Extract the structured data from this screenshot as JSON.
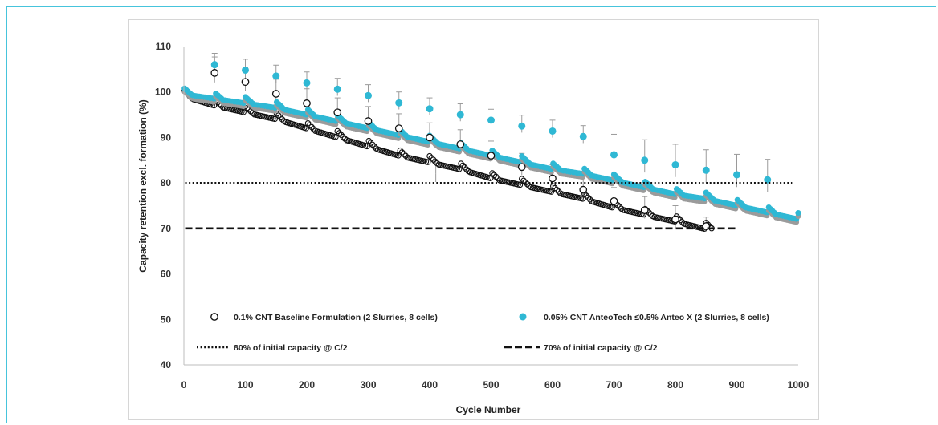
{
  "chart_data": {
    "type": "scatter",
    "xlabel": "Cycle Number",
    "ylabel": "Capacity retention excl. formation (%)",
    "xlim": [
      0,
      1000
    ],
    "ylim": [
      40,
      110
    ],
    "xticks": [
      "0",
      "100",
      "200",
      "300",
      "400",
      "500",
      "600",
      "700",
      "800",
      "900",
      "1000"
    ],
    "yticks": [
      "40",
      "50",
      "60",
      "70",
      "80",
      "90",
      "100",
      "110"
    ],
    "grid": false,
    "legend_placement": "bottom",
    "series": [
      {
        "name": "0.1% CNT Baseline Formulation (2 Slurries, 8 cells)",
        "marker": "open-circle",
        "color": "#111111",
        "end_cycle": 860,
        "trend": [
          [
            0,
            99
          ],
          [
            50,
            97
          ],
          [
            100,
            95.5
          ],
          [
            150,
            94
          ],
          [
            200,
            92
          ],
          [
            250,
            90
          ],
          [
            300,
            88
          ],
          [
            350,
            86
          ],
          [
            400,
            84.5
          ],
          [
            450,
            83
          ],
          [
            500,
            81
          ],
          [
            550,
            79.5
          ],
          [
            600,
            78
          ],
          [
            650,
            76.5
          ],
          [
            700,
            74.5
          ],
          [
            750,
            73
          ],
          [
            800,
            71.5
          ],
          [
            860,
            69.5
          ]
        ],
        "checkup_points": [
          [
            50,
            104.2
          ],
          [
            100,
            102.2
          ],
          [
            150,
            99.6
          ],
          [
            200,
            97.5
          ],
          [
            250,
            95.5
          ],
          [
            300,
            93.6
          ],
          [
            350,
            92
          ],
          [
            400,
            90
          ],
          [
            450,
            88.5
          ],
          [
            500,
            86
          ],
          [
            550,
            83.5
          ],
          [
            600,
            81
          ],
          [
            650,
            78.5
          ],
          [
            700,
            76
          ],
          [
            750,
            74
          ],
          [
            800,
            72
          ],
          [
            850,
            70.5
          ]
        ],
        "error_bars": [
          [
            50,
            104.2,
            3.5
          ],
          [
            100,
            102.2,
            3.2
          ],
          [
            150,
            99.6,
            3.2
          ],
          [
            200,
            97.5,
            3.2
          ],
          [
            250,
            95.5,
            3.2
          ],
          [
            300,
            93.6,
            3.2
          ],
          [
            350,
            92,
            3.2
          ],
          [
            400,
            90,
            3.2
          ],
          [
            410,
            82,
            3
          ],
          [
            450,
            88.5,
            3.2
          ],
          [
            500,
            86,
            3.2
          ],
          [
            550,
            83.5,
            3
          ],
          [
            600,
            81,
            3
          ],
          [
            650,
            78.5,
            3
          ],
          [
            700,
            76,
            3
          ],
          [
            750,
            74,
            3
          ],
          [
            800,
            72,
            3
          ],
          [
            850,
            70.5,
            2
          ]
        ]
      },
      {
        "name": "0.05% CNT AnteoTech ≤0.5% Anteo X (2 Slurries, 8 cells)",
        "marker": "filled-circle",
        "color": "#2fb8d4",
        "end_cycle": 1000,
        "trend": [
          [
            0,
            99.5
          ],
          [
            50,
            98.5
          ],
          [
            100,
            97.5
          ],
          [
            150,
            96.5
          ],
          [
            200,
            95
          ],
          [
            250,
            93.5
          ],
          [
            300,
            92
          ],
          [
            350,
            90.5
          ],
          [
            400,
            89
          ],
          [
            450,
            87.5
          ],
          [
            500,
            86
          ],
          [
            550,
            84.5
          ],
          [
            600,
            83
          ],
          [
            650,
            82
          ],
          [
            700,
            80.5
          ],
          [
            750,
            79
          ],
          [
            800,
            77.5
          ],
          [
            850,
            76.5
          ],
          [
            900,
            75
          ],
          [
            950,
            73.5
          ],
          [
            1000,
            72
          ]
        ],
        "checkup_points": [
          [
            50,
            106
          ],
          [
            100,
            104.8
          ],
          [
            150,
            103.5
          ],
          [
            200,
            102
          ],
          [
            250,
            100.6
          ],
          [
            300,
            99.2
          ],
          [
            350,
            97.6
          ],
          [
            400,
            96.3
          ],
          [
            450,
            95
          ],
          [
            500,
            93.8
          ],
          [
            550,
            92.5
          ],
          [
            600,
            91.4
          ],
          [
            650,
            90.2
          ],
          [
            700,
            86.2
          ],
          [
            750,
            85
          ],
          [
            800,
            84
          ],
          [
            850,
            82.8
          ],
          [
            900,
            81.8
          ],
          [
            950,
            80.7
          ]
        ],
        "error_bars": [
          [
            50,
            106,
            2.5
          ],
          [
            100,
            104.8,
            2.4
          ],
          [
            150,
            103.5,
            2.4
          ],
          [
            200,
            102,
            2.4
          ],
          [
            250,
            100.6,
            2.4
          ],
          [
            300,
            99.2,
            2.4
          ],
          [
            350,
            97.6,
            2.4
          ],
          [
            400,
            96.3,
            2.4
          ],
          [
            450,
            95,
            2.4
          ],
          [
            500,
            93.8,
            2.4
          ],
          [
            550,
            92.5,
            2.4
          ],
          [
            600,
            91.4,
            2.4
          ],
          [
            650,
            90.2,
            2.4
          ],
          [
            700,
            86.2,
            4.5
          ],
          [
            750,
            85,
            4.5
          ],
          [
            800,
            84,
            4.5
          ],
          [
            850,
            82.8,
            4.5
          ],
          [
            900,
            81.8,
            4.5
          ],
          [
            950,
            80.7,
            4.5
          ]
        ]
      },
      {
        "name": "80% of initial capacity @ C/2",
        "line_style": "dotted",
        "color": "#111111",
        "y": 80
      },
      {
        "name": "70% of initial capacity @ C/2",
        "line_style": "dashed",
        "color": "#111111",
        "y": 70
      }
    ]
  }
}
